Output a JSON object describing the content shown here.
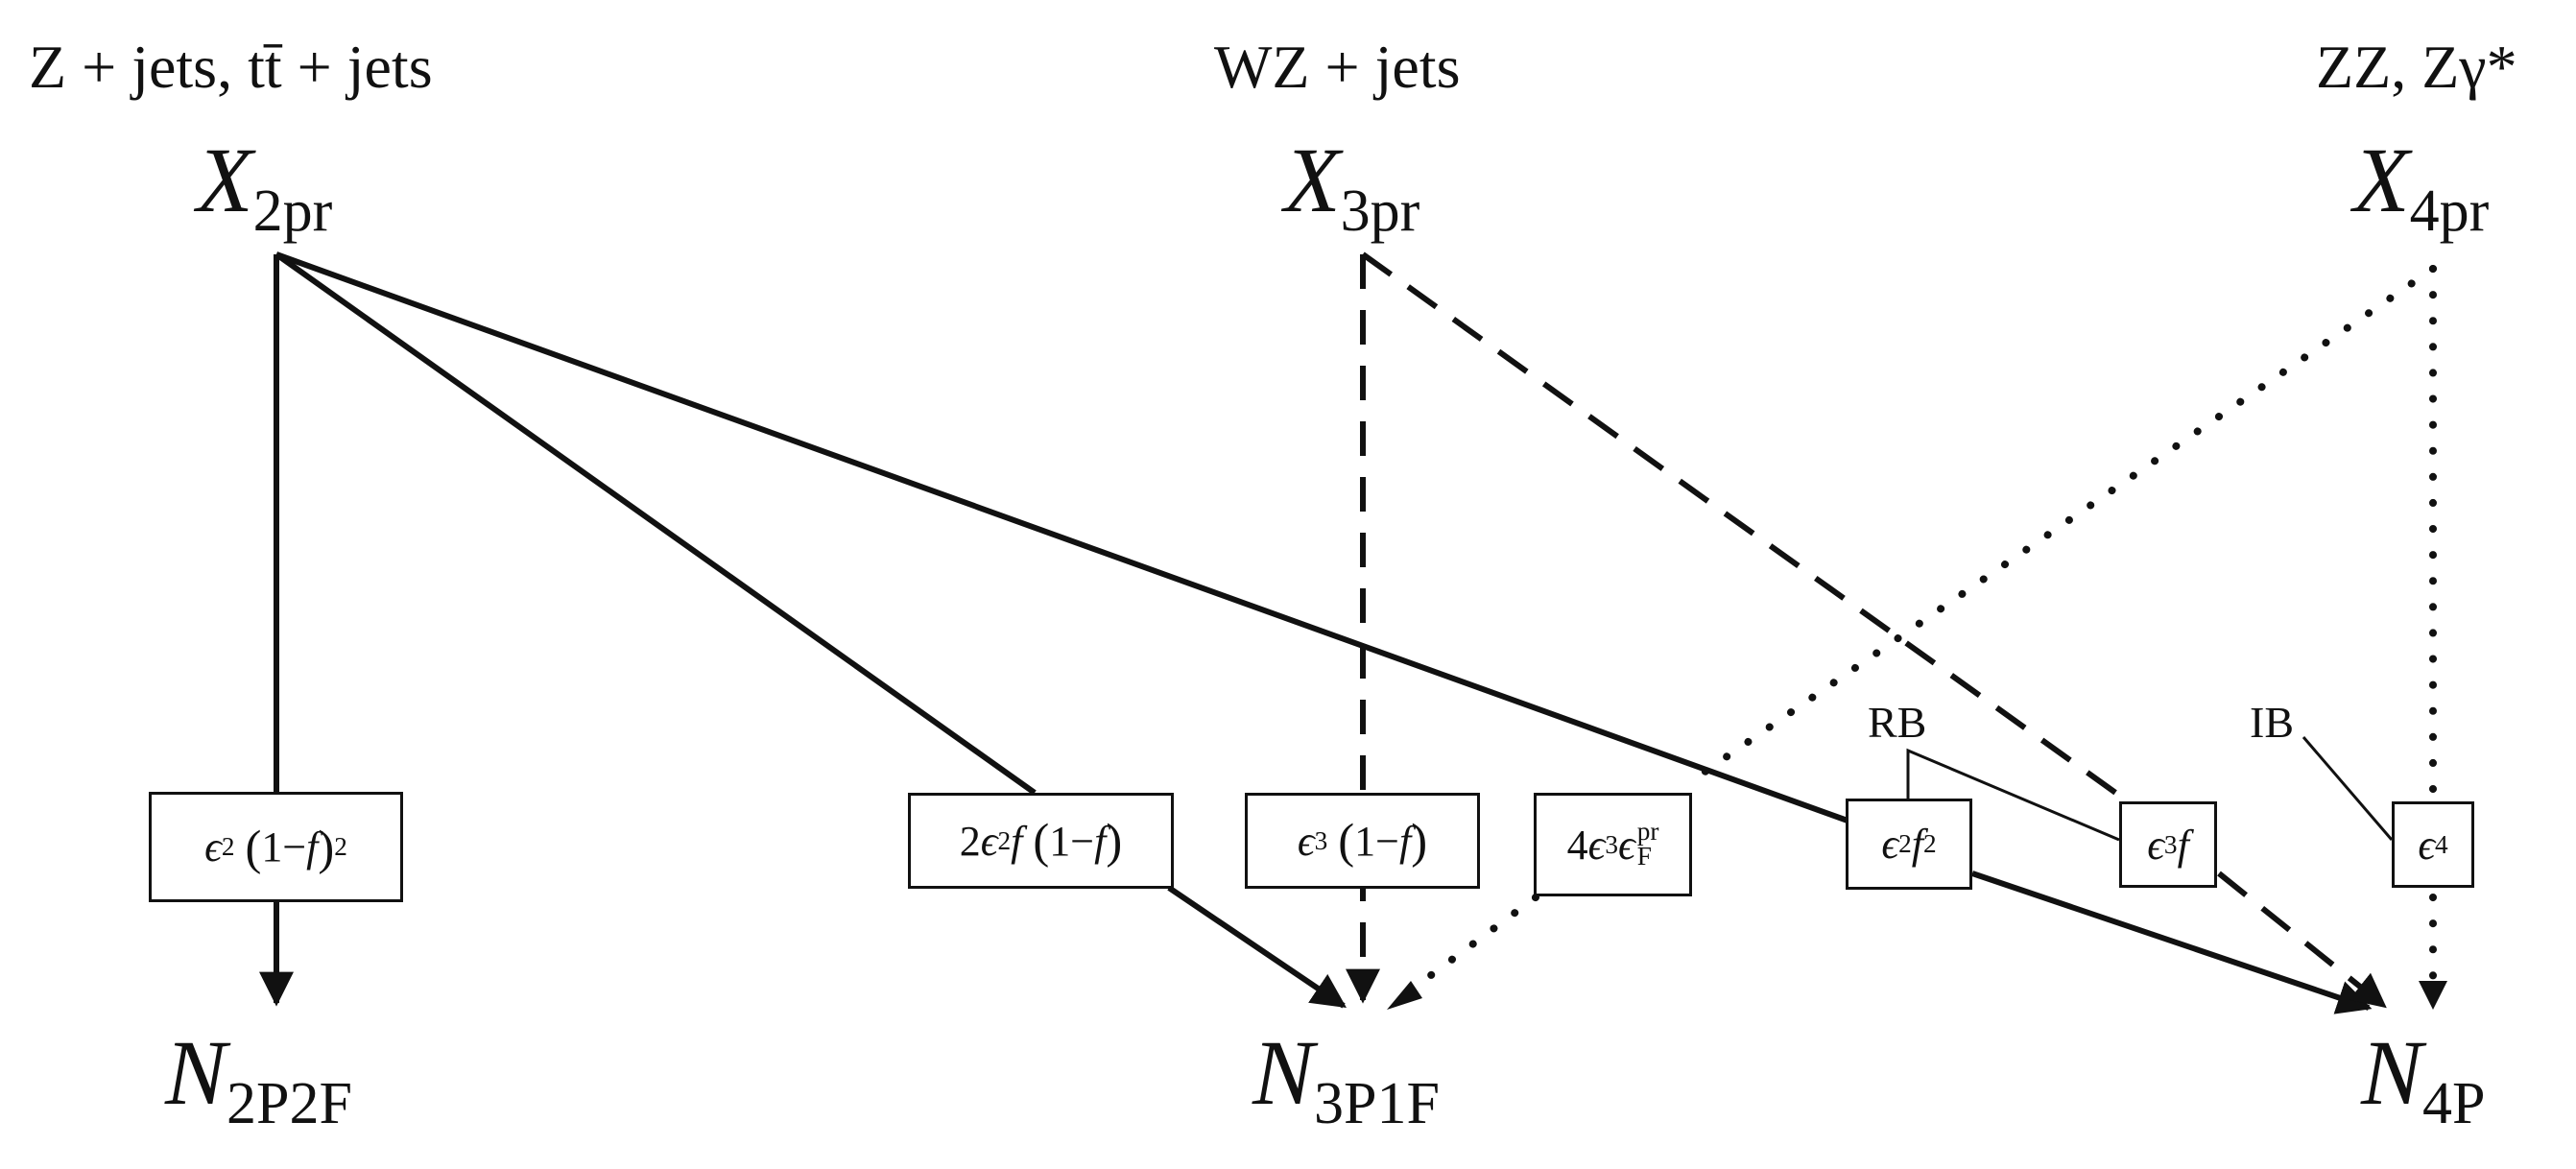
{
  "processes": {
    "p2": "Z + jets, tt̄ + jets",
    "p3": "WZ + jets",
    "p4": "ZZ, Zγ*"
  },
  "sources": {
    "x2": {
      "main": "X",
      "sub": "2pr"
    },
    "x3": {
      "main": "X",
      "sub": "3pr"
    },
    "x4": {
      "main": "X",
      "sub": "4pr"
    }
  },
  "targets": {
    "n2": {
      "main": "N",
      "sub": "2P2F"
    },
    "n3": {
      "main": "N",
      "sub": "3P1F"
    },
    "n4": {
      "main": "N",
      "sub": "4P"
    }
  },
  "weights": {
    "w1": {
      "eps": "ϵ",
      "pow1": "2",
      "lp": "(",
      "one": "1",
      "minus": " − ",
      "f": "f",
      "rp": ")",
      "pow2": "2"
    },
    "w2": {
      "coef": "2",
      "eps": "ϵ",
      "pow1": "2",
      "f": "f",
      "lp": "(",
      "one": "1",
      "minus": " − ",
      "f2": "f",
      "rp": ")"
    },
    "w3": {
      "eps": "ϵ",
      "pow1": "3",
      "lp": "(",
      "one": "1",
      "minus": " − ",
      "f": "f",
      "rp": ")"
    },
    "w4": {
      "coef": "4",
      "eps": "ϵ",
      "pow1": "3",
      "eps2": "ϵ",
      "sup": "pr",
      "subF": "F"
    },
    "w5": {
      "eps": "ϵ",
      "pow1": "2",
      "f": "f",
      "pow2": "2"
    },
    "w6": {
      "eps": "ϵ",
      "pow1": "3",
      "f": "f"
    },
    "w7": {
      "eps": "ϵ",
      "pow1": "4"
    }
  },
  "annotations": {
    "rb": "RB",
    "ib": "IB"
  },
  "edge_styles": {
    "from_x2": "solid",
    "from_x3": "dashed",
    "from_x4": "dotted"
  }
}
